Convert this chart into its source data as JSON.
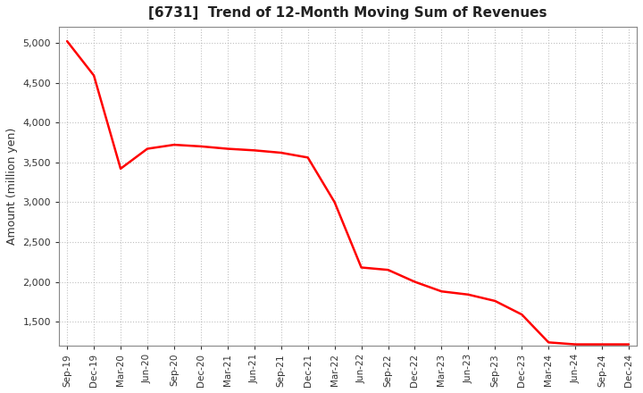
{
  "title": "[6731]  Trend of 12-Month Moving Sum of Revenues",
  "ylabel": "Amount (million yen)",
  "line_color": "#ff0000",
  "background_color": "#ffffff",
  "plot_bg_color": "#ffffff",
  "grid_color": "#b0b0b0",
  "ylim": [
    1200,
    5200
  ],
  "yticks": [
    1500,
    2000,
    2500,
    3000,
    3500,
    4000,
    4500,
    5000
  ],
  "x_labels": [
    "Sep-19",
    "Dec-19",
    "Mar-20",
    "Jun-20",
    "Sep-20",
    "Dec-20",
    "Mar-21",
    "Jun-21",
    "Sep-21",
    "Dec-21",
    "Mar-22",
    "Jun-22",
    "Sep-22",
    "Dec-22",
    "Mar-23",
    "Jun-23",
    "Sep-23",
    "Dec-23",
    "Mar-24",
    "Jun-24",
    "Sep-24",
    "Dec-24"
  ],
  "values": [
    5020,
    4590,
    3420,
    3670,
    3720,
    3700,
    3670,
    3650,
    3620,
    3560,
    3000,
    2180,
    2150,
    2000,
    1880,
    1840,
    1760,
    1590,
    1240,
    1215,
    1215,
    1215
  ],
  "title_fontsize": 11,
  "ylabel_fontsize": 9,
  "tick_fontsize": 8,
  "xtick_fontsize": 7.5
}
